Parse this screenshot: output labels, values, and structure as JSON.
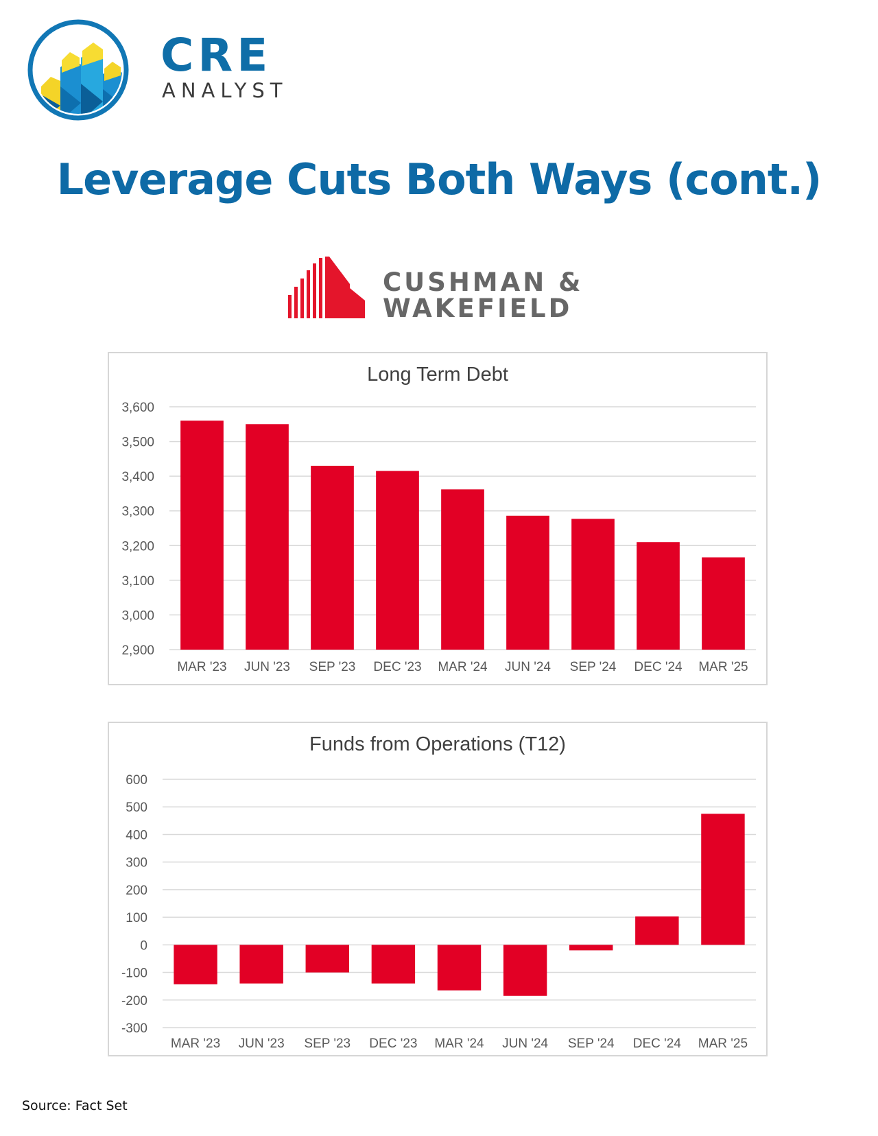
{
  "brand": {
    "name": "CRE",
    "subtitle": "ANALYST"
  },
  "page_title": "Leverage Cuts Both Ways (cont.)",
  "company": {
    "line1": "CUSHMAN &",
    "line2": "WAKEFIELD"
  },
  "colors": {
    "bar": "#e20025",
    "brand_blue": "#0f6ea8",
    "company_red": "#e4152b"
  },
  "chart_data": [
    {
      "type": "bar",
      "title": "Long Term Debt",
      "categories": [
        "MAR '23",
        "JUN '23",
        "SEP '23",
        "DEC '23",
        "MAR '24",
        "JUN '24",
        "SEP '24",
        "DEC '24",
        "MAR '25"
      ],
      "values": [
        3560,
        3550,
        3430,
        3415,
        3362,
        3286,
        3277,
        3210,
        3166
      ],
      "yticks": [
        "2,900",
        "3,000",
        "3,100",
        "3,200",
        "3,300",
        "3,400",
        "3,500",
        "3,600"
      ],
      "ylim": [
        2900,
        3600
      ],
      "xlabel": "",
      "ylabel": "",
      "grid": true
    },
    {
      "type": "bar",
      "title": "Funds from Operations (T12)",
      "categories": [
        "MAR '23",
        "JUN '23",
        "SEP '23",
        "DEC '23",
        "MAR '24",
        "JUN '24",
        "SEP '24",
        "DEC '24",
        "MAR '25"
      ],
      "values": [
        -143,
        -140,
        -100,
        -140,
        -165,
        -185,
        -20,
        103,
        475
      ],
      "yticks": [
        "-300",
        "-200",
        "-100",
        "0",
        "100",
        "200",
        "300",
        "400",
        "500",
        "600"
      ],
      "ylim": [
        -300,
        600
      ],
      "xlabel": "",
      "ylabel": "",
      "grid": true
    }
  ],
  "source": "Source: Fact Set"
}
